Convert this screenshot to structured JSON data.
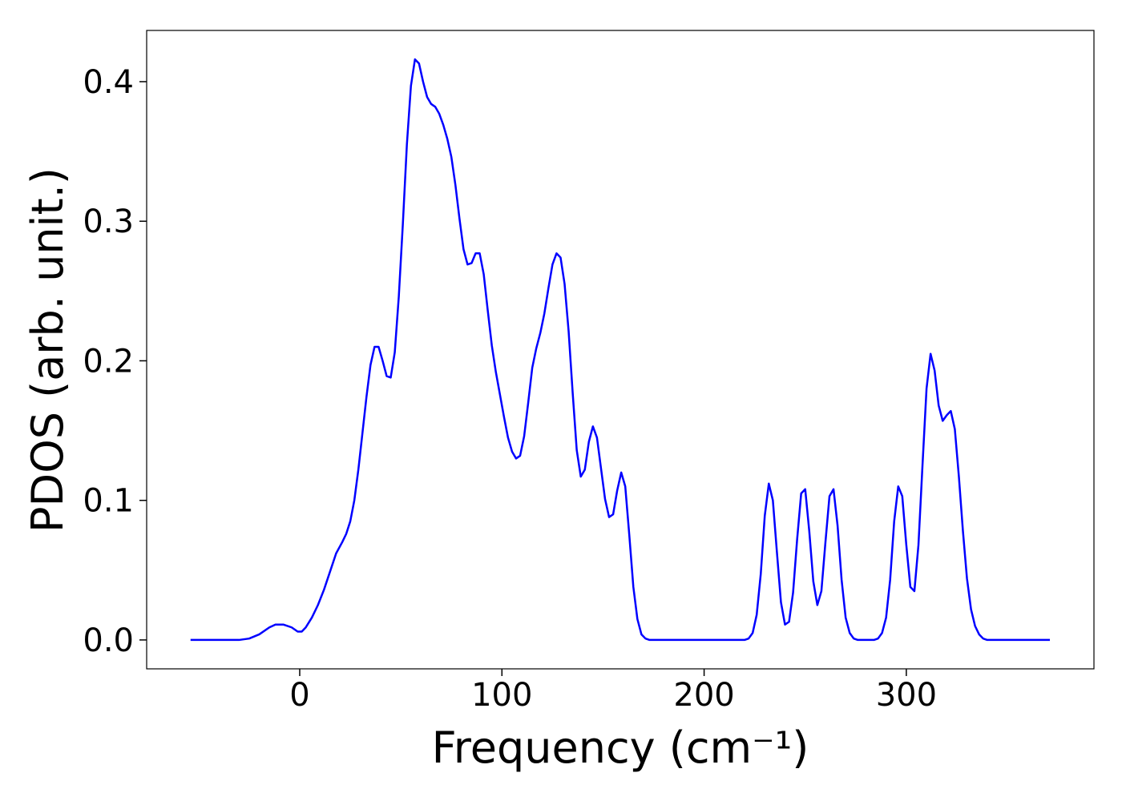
{
  "chart_data": {
    "type": "line",
    "xlabel": "Frequency (cm⁻¹)",
    "ylabel": "PDOS (arb. unit.)",
    "color": "#0000ff",
    "x": [
      -54,
      -30,
      -25,
      -20,
      -15,
      -12,
      -8,
      -4,
      -1,
      1,
      3,
      6,
      9,
      12,
      15,
      18,
      21,
      23,
      25,
      27,
      29,
      31,
      33,
      35,
      37,
      39,
      41,
      43,
      45,
      47,
      49,
      51,
      53,
      55,
      57,
      59,
      61,
      63,
      65,
      67,
      69,
      71,
      73,
      75,
      77,
      79,
      81,
      83,
      85,
      87,
      89,
      91,
      93,
      95,
      97,
      99,
      101,
      103,
      105,
      107,
      109,
      111,
      113,
      115,
      117,
      119,
      121,
      123,
      125,
      127,
      129,
      131,
      133,
      135,
      137,
      139,
      141,
      143,
      145,
      147,
      149,
      151,
      153,
      155,
      157,
      159,
      161,
      163,
      165,
      167,
      169,
      171,
      173,
      220,
      222,
      224,
      226,
      228,
      230,
      232,
      234,
      236,
      238,
      240,
      242,
      244,
      246,
      248,
      250,
      252,
      254,
      256,
      258,
      260,
      262,
      264,
      266,
      268,
      270,
      272,
      274,
      276,
      284,
      286,
      288,
      290,
      292,
      294,
      296,
      298,
      300,
      302,
      304,
      306,
      308,
      310,
      312,
      314,
      316,
      318,
      320,
      322,
      324,
      326,
      328,
      330,
      332,
      334,
      336,
      338,
      340,
      371
    ],
    "values": [
      0,
      0,
      0.001,
      0.004,
      0.009,
      0.011,
      0.011,
      0.009,
      0.006,
      0.006,
      0.009,
      0.016,
      0.025,
      0.036,
      0.049,
      0.062,
      0.07,
      0.076,
      0.085,
      0.1,
      0.122,
      0.148,
      0.174,
      0.197,
      0.21,
      0.21,
      0.2,
      0.189,
      0.188,
      0.206,
      0.246,
      0.298,
      0.355,
      0.397,
      0.416,
      0.413,
      0.4,
      0.389,
      0.384,
      0.382,
      0.377,
      0.369,
      0.359,
      0.346,
      0.326,
      0.302,
      0.28,
      0.269,
      0.27,
      0.277,
      0.277,
      0.262,
      0.236,
      0.211,
      0.192,
      0.176,
      0.16,
      0.145,
      0.135,
      0.13,
      0.132,
      0.146,
      0.17,
      0.195,
      0.209,
      0.22,
      0.234,
      0.252,
      0.269,
      0.277,
      0.274,
      0.255,
      0.221,
      0.177,
      0.136,
      0.117,
      0.122,
      0.142,
      0.153,
      0.145,
      0.123,
      0.101,
      0.088,
      0.09,
      0.107,
      0.12,
      0.11,
      0.075,
      0.038,
      0.015,
      0.004,
      0.001,
      0,
      0,
      0.001,
      0.005,
      0.018,
      0.047,
      0.089,
      0.112,
      0.1,
      0.063,
      0.027,
      0.011,
      0.013,
      0.034,
      0.072,
      0.105,
      0.108,
      0.078,
      0.042,
      0.025,
      0.035,
      0.07,
      0.103,
      0.108,
      0.082,
      0.043,
      0.016,
      0.005,
      0.001,
      0,
      0,
      0.001,
      0.005,
      0.016,
      0.043,
      0.085,
      0.11,
      0.103,
      0.068,
      0.038,
      0.035,
      0.068,
      0.125,
      0.18,
      0.205,
      0.193,
      0.168,
      0.157,
      0.161,
      0.164,
      0.151,
      0.117,
      0.078,
      0.044,
      0.022,
      0.01,
      0.004,
      0.001,
      0,
      0
    ],
    "xlim": [
      -75.7,
      392.8
    ],
    "ylim": [
      -0.0207,
      0.4367
    ],
    "xticks": [
      0,
      100,
      200,
      300
    ],
    "yticks": [
      {
        "value": 0,
        "label": "0.0"
      },
      0.1,
      0.2,
      0.3,
      0.4
    ]
  }
}
